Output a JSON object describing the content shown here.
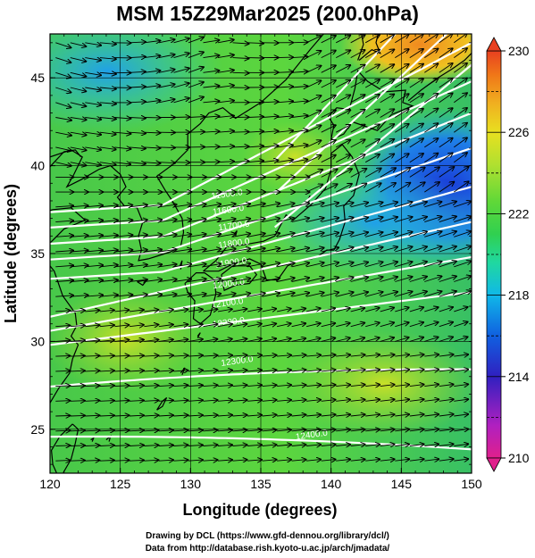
{
  "title": "MSM 15Z29Mar2025 (200.0hPa)",
  "x_axis": {
    "label": "Longitude (degrees)",
    "ticks": [
      "120",
      "125",
      "130",
      "135",
      "140",
      "145",
      "150"
    ],
    "range": [
      120,
      150
    ]
  },
  "y_axis": {
    "label": "Latitude  (degrees)",
    "ticks": [
      "25",
      "30",
      "35",
      "40",
      "45"
    ],
    "range": [
      22.5,
      47.5
    ]
  },
  "colorbar": {
    "ticks": [
      "210",
      "214",
      "218",
      "222",
      "226",
      "230"
    ],
    "range": [
      210,
      230
    ],
    "colors": [
      "#e0208c",
      "#b020c0",
      "#3020c0",
      "#1060e0",
      "#10b8e8",
      "#20d8a0",
      "#30d050",
      "#60d838",
      "#b0e030",
      "#e8e020",
      "#f0b020",
      "#f07818",
      "#e84020"
    ]
  },
  "contour_labels": [
    {
      "text": "11500.0",
      "lat": 38.1,
      "lon": 131.5
    },
    {
      "text": "11600.0",
      "lat": 37.2,
      "lon": 131.6
    },
    {
      "text": "11700.0",
      "lat": 36.3,
      "lon": 132.0
    },
    {
      "text": "11800.0",
      "lat": 35.3,
      "lon": 132.0
    },
    {
      "text": "11900.0",
      "lat": 34.2,
      "lon": 131.8
    },
    {
      "text": "12000.0",
      "lat": 33.0,
      "lon": 131.6
    },
    {
      "text": "12100.0",
      "lat": 31.9,
      "lon": 131.5
    },
    {
      "text": "12200.0",
      "lat": 30.8,
      "lon": 131.6
    },
    {
      "text": "12300.0",
      "lat": 28.6,
      "lon": 132.2
    },
    {
      "text": "12400.0",
      "lat": 24.4,
      "lon": 137.5
    }
  ],
  "credit_line1": "Drawing by DCL (https://www.gfd-dennou.org/library/dcl/)",
  "credit_line2": "Data from http://database.rish.kyoto-u.ac.jp/arch/jmadata/"
}
